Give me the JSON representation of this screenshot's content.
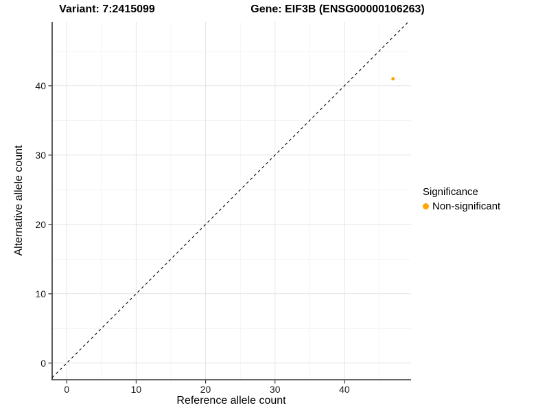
{
  "page": {
    "background": "#FFFFFF"
  },
  "chart_data": {
    "type": "scatter",
    "titles": {
      "left": "Variant: 7:2415099",
      "right": "Gene: EIF3B (ENSG00000106263)"
    },
    "xlabel": "Reference allele count",
    "ylabel": "Alternative allele count",
    "xlim": [
      -2.1,
      49.6
    ],
    "ylim": [
      -2.4,
      49.2
    ],
    "x_ticks": [
      0,
      10,
      20,
      30,
      40
    ],
    "y_ticks": [
      0,
      10,
      20,
      30,
      40
    ],
    "x_minor_ticks": [
      5,
      15,
      25,
      35,
      45
    ],
    "y_minor_ticks": [
      5,
      15,
      25,
      35,
      45
    ],
    "grid": {
      "show": true,
      "major_color": "#E4E4E4",
      "minor_color": "#F1F1F1"
    },
    "axis_style": {
      "line_color": "#333333",
      "tick_color": "#333333",
      "tick_label_color": "#1A1A1A"
    },
    "reference_line": {
      "type": "identity",
      "style": "dashed",
      "color": "#000000"
    },
    "series": [
      {
        "name": "Non-significant",
        "color": "#FFA500",
        "points": [
          {
            "x": 47,
            "y": 41
          }
        ]
      }
    ],
    "legend": {
      "title": "Significance",
      "position": "right",
      "items": [
        {
          "label": "Non-significant",
          "color": "#FFA500",
          "marker": "circle"
        }
      ]
    }
  }
}
